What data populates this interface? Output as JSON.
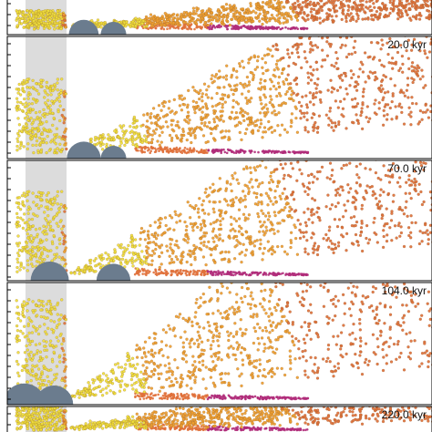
{
  "chart_data": {
    "type": "scatter",
    "title": "",
    "xlabel": "",
    "ylabel": "",
    "grid": false,
    "legend": "none",
    "colors": {
      "shaded_band": "#dcdcdc",
      "embedded_bodies": "#6b7c8e",
      "particles_near": "#f0e03a",
      "particles_mid": "#f0a030",
      "particles_far": "#e0703a",
      "particles_dense_floor": "#b02c7a",
      "frame": "#000000"
    },
    "panels": [
      {
        "label": "",
        "time_kyr": null,
        "bodies": [
          {
            "x": 0.18,
            "r": 0.035
          },
          {
            "x": 0.25,
            "r": 0.03
          }
        ],
        "plume_spread": 0.15,
        "cloud": "fan"
      },
      {
        "label": "20.0 kyr",
        "time_kyr": 20.0,
        "bodies": [
          {
            "x": 0.18,
            "r": 0.04
          },
          {
            "x": 0.25,
            "r": 0.03
          }
        ],
        "plume_spread": 0.35,
        "cloud": "fan"
      },
      {
        "label": "70.0 kyr",
        "time_kyr": 70.0,
        "bodies": [
          {
            "x": 0.1,
            "r": 0.045
          },
          {
            "x": 0.25,
            "r": 0.04
          }
        ],
        "plume_spread": 0.5,
        "cloud": "fan"
      },
      {
        "label": "104.0 kyr",
        "time_kyr": 104.0,
        "bodies": [
          {
            "x": 0.04,
            "r": 0.05
          },
          {
            "x": 0.11,
            "r": 0.045
          }
        ],
        "plume_spread": 0.7,
        "cloud": "fan"
      },
      {
        "label": "220.0 kyr",
        "time_kyr": 220.0,
        "bodies": [],
        "plume_spread": 0.7,
        "cloud": "fan"
      }
    ]
  }
}
